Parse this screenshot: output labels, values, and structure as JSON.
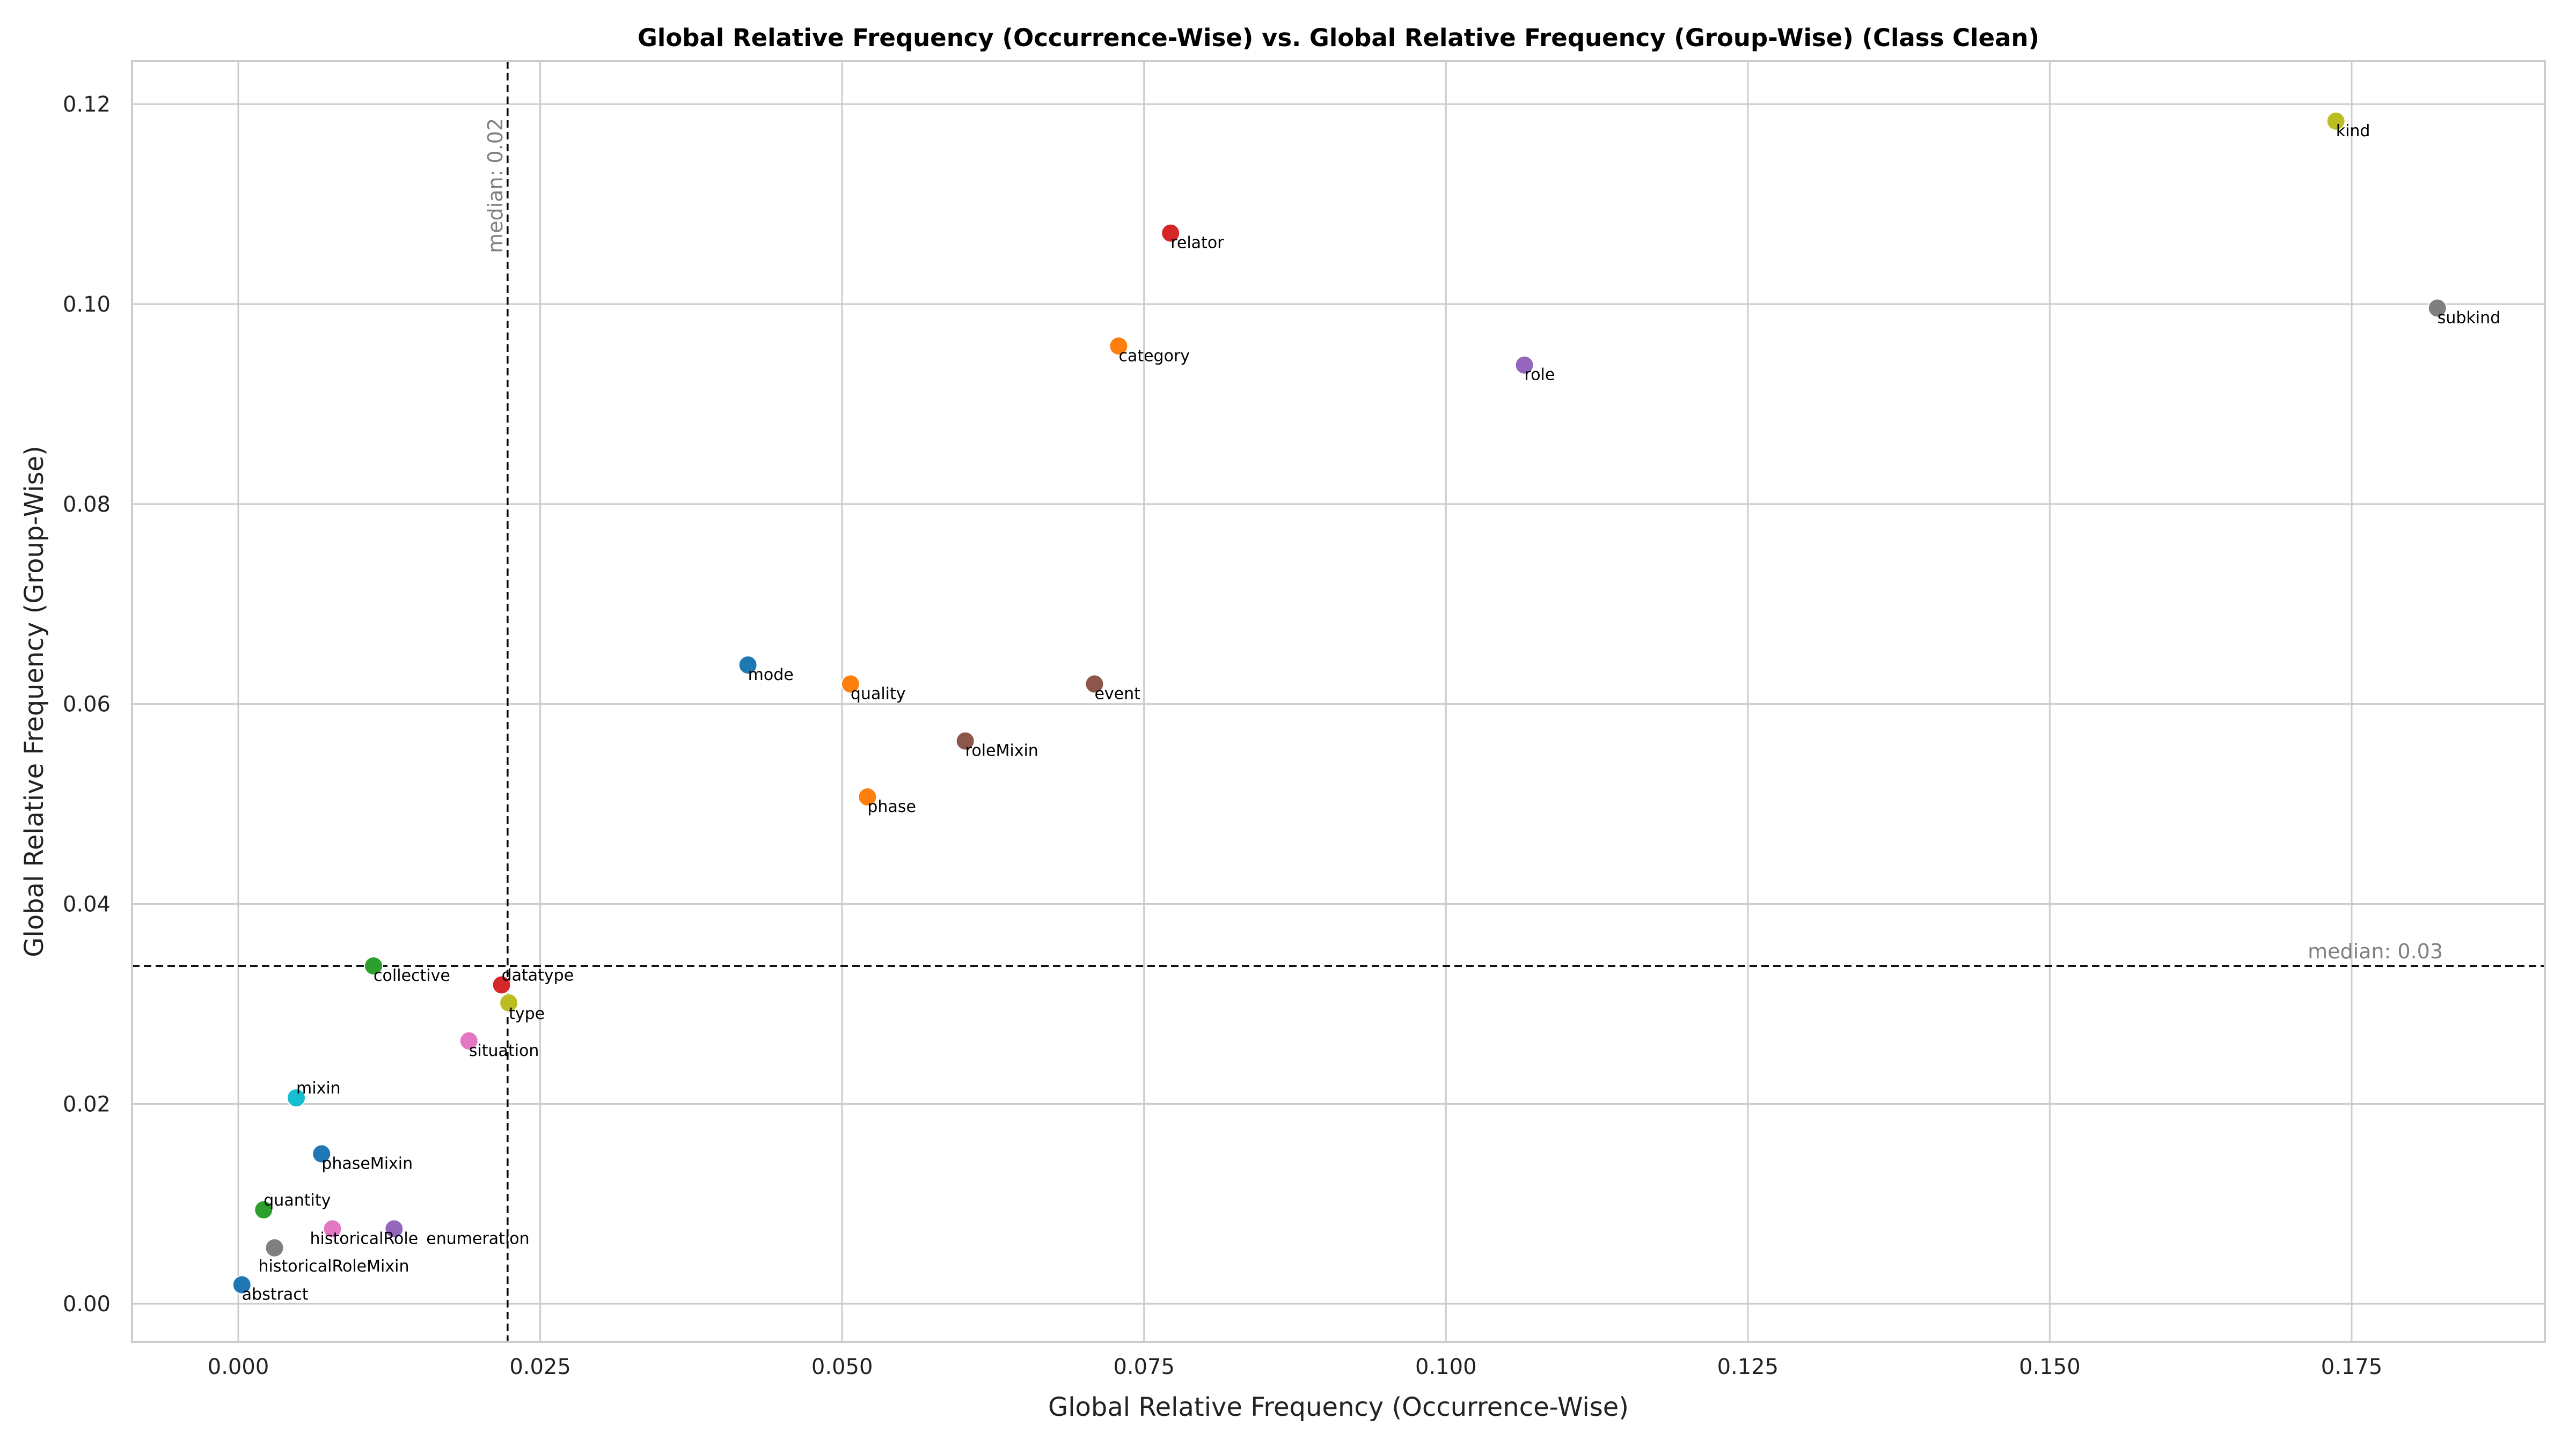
{
  "chart_data": {
    "type": "scatter",
    "title": "Global Relative Frequency (Occurrence-Wise) vs. Global Relative Frequency (Group-Wise) (Class Clean)",
    "xlabel": "Global Relative Frequency (Occurrence-Wise)",
    "ylabel": "Global Relative Frequency (Group-Wise)",
    "xlim": [
      -0.0088,
      0.191
    ],
    "ylim": [
      -0.0038,
      0.1243
    ],
    "xticks": [
      0.0,
      0.025,
      0.05,
      0.075,
      0.1,
      0.125,
      0.15,
      0.175
    ],
    "xtick_labels": [
      "0.000",
      "0.025",
      "0.050",
      "0.075",
      "0.100",
      "0.125",
      "0.150",
      "0.175"
    ],
    "yticks": [
      0.0,
      0.02,
      0.04,
      0.06,
      0.08,
      0.1,
      0.12
    ],
    "ytick_labels": [
      "0.00",
      "0.02",
      "0.04",
      "0.06",
      "0.08",
      "0.10",
      "0.12"
    ],
    "grid": true,
    "median_x": {
      "value": 0.0223,
      "label": "median: 0.02"
    },
    "median_y": {
      "value": 0.0338,
      "label": "median: 0.03"
    },
    "points": [
      {
        "label": "kind",
        "x": 0.1737,
        "y": 0.1183,
        "color": "#bcbd22"
      },
      {
        "label": "relator",
        "x": 0.0772,
        "y": 0.1071,
        "color": "#d62728"
      },
      {
        "label": "subkind",
        "x": 0.1821,
        "y": 0.0996,
        "color": "#7f7f7f"
      },
      {
        "label": "category",
        "x": 0.0729,
        "y": 0.0958,
        "color": "#ff7f0e"
      },
      {
        "label": "role",
        "x": 0.1065,
        "y": 0.0939,
        "color": "#9467bd"
      },
      {
        "label": "mode",
        "x": 0.0422,
        "y": 0.0639,
        "color": "#1f77b4"
      },
      {
        "label": "quality",
        "x": 0.0507,
        "y": 0.062,
        "color": "#ff7f0e"
      },
      {
        "label": "event",
        "x": 0.0709,
        "y": 0.062,
        "color": "#8c564b"
      },
      {
        "label": "roleMixin",
        "x": 0.0602,
        "y": 0.0563,
        "color": "#8c564b"
      },
      {
        "label": "phase",
        "x": 0.0521,
        "y": 0.0507,
        "color": "#ff7f0e"
      },
      {
        "label": "collective",
        "x": 0.0112,
        "y": 0.0338,
        "color": "#2ca02c"
      },
      {
        "label": "datatype",
        "x": 0.0218,
        "y": 0.0319,
        "color": "#d62728"
      },
      {
        "label": "type",
        "x": 0.0224,
        "y": 0.0301,
        "color": "#bcbd22"
      },
      {
        "label": "situation",
        "x": 0.0191,
        "y": 0.0263,
        "color": "#e377c2"
      },
      {
        "label": "mixin",
        "x": 0.0048,
        "y": 0.0206,
        "color": "#17becf"
      },
      {
        "label": "phaseMixin",
        "x": 0.0069,
        "y": 0.015,
        "color": "#1f77b4"
      },
      {
        "label": "quantity",
        "x": 0.0021,
        "y": 0.0094,
        "color": "#2ca02c"
      },
      {
        "label": "historicalRole",
        "x": 0.0078,
        "y": 0.0075,
        "color": "#e377c2"
      },
      {
        "label": "enumeration",
        "x": 0.0129,
        "y": 0.0075,
        "color": "#9467bd"
      },
      {
        "label": "historicalRoleMixin",
        "x": 0.003,
        "y": 0.0056,
        "color": "#7f7f7f"
      },
      {
        "label": "abstract",
        "x": 0.0003,
        "y": 0.0019,
        "color": "#1f77b4"
      }
    ]
  }
}
